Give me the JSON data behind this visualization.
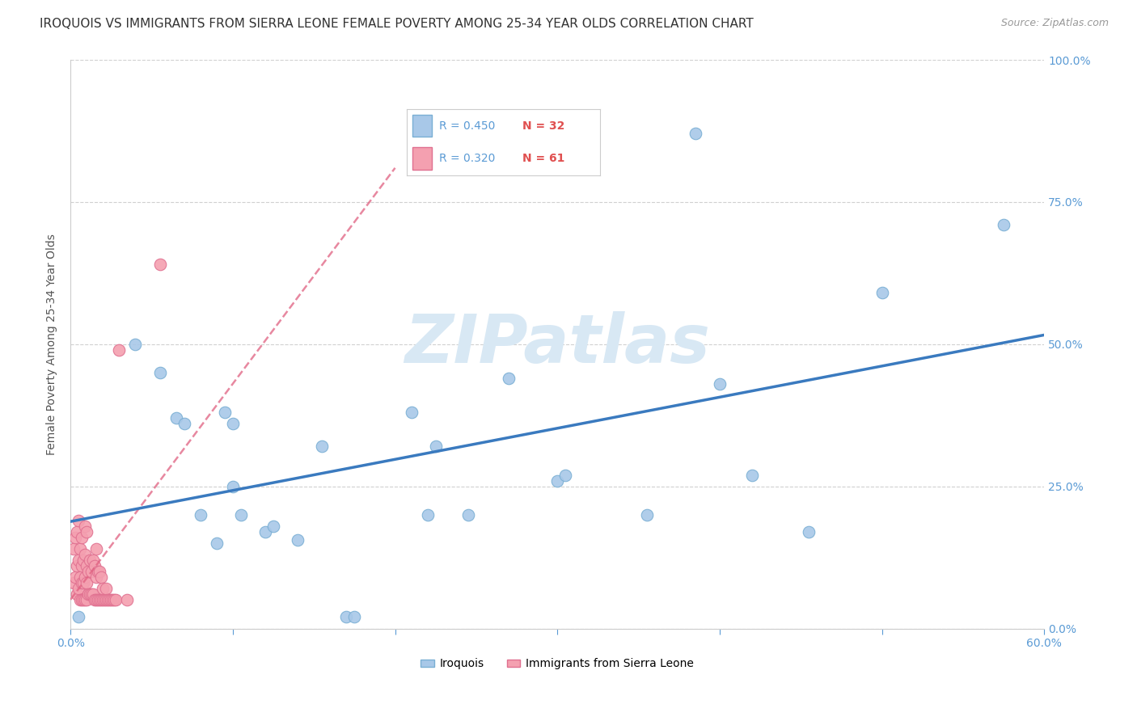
{
  "title": "IROQUOIS VS IMMIGRANTS FROM SIERRA LEONE FEMALE POVERTY AMONG 25-34 YEAR OLDS CORRELATION CHART",
  "source": "Source: ZipAtlas.com",
  "ylabel": "Female Poverty Among 25-34 Year Olds",
  "xlim": [
    0.0,
    0.6
  ],
  "ylim": [
    0.0,
    1.0
  ],
  "xticks": [
    0.0,
    0.1,
    0.2,
    0.3,
    0.4,
    0.5,
    0.6
  ],
  "xtick_labels": [
    "0.0%",
    "",
    "",
    "",
    "",
    "",
    "60.0%"
  ],
  "yticks": [
    0.0,
    0.25,
    0.5,
    0.75,
    1.0
  ],
  "right_ytick_labels": [
    "0.0%",
    "25.0%",
    "50.0%",
    "75.0%",
    "100.0%"
  ],
  "iroquois_color": "#a8c8e8",
  "iroquois_edge": "#7aafd4",
  "sierra_leone_color": "#f4a0b0",
  "sierra_leone_edge": "#e07090",
  "trend_iroquois_color": "#3a7abf",
  "trend_sierra_leone_color": "#e06080",
  "watermark_color": "#d8e8f4",
  "legend_R_color": "#5b9bd5",
  "legend_N_color": "#e05050",
  "iroquois_x": [
    0.005,
    0.04,
    0.055,
    0.065,
    0.07,
    0.08,
    0.09,
    0.095,
    0.1,
    0.1,
    0.105,
    0.12,
    0.125,
    0.14,
    0.155,
    0.17,
    0.175,
    0.21,
    0.22,
    0.225,
    0.245,
    0.27,
    0.3,
    0.305,
    0.355,
    0.385,
    0.4,
    0.42,
    0.455,
    0.5,
    0.575
  ],
  "iroquois_y": [
    0.02,
    0.5,
    0.45,
    0.37,
    0.36,
    0.2,
    0.15,
    0.38,
    0.36,
    0.25,
    0.2,
    0.17,
    0.18,
    0.155,
    0.32,
    0.02,
    0.02,
    0.38,
    0.2,
    0.32,
    0.2,
    0.44,
    0.26,
    0.27,
    0.2,
    0.87,
    0.43,
    0.27,
    0.17,
    0.59,
    0.71
  ],
  "sierra_leone_x": [
    0.002,
    0.002,
    0.003,
    0.003,
    0.004,
    0.004,
    0.004,
    0.005,
    0.005,
    0.005,
    0.006,
    0.006,
    0.006,
    0.007,
    0.007,
    0.007,
    0.007,
    0.008,
    0.008,
    0.008,
    0.009,
    0.009,
    0.009,
    0.009,
    0.01,
    0.01,
    0.01,
    0.01,
    0.011,
    0.011,
    0.012,
    0.012,
    0.013,
    0.013,
    0.014,
    0.014,
    0.015,
    0.015,
    0.016,
    0.016,
    0.016,
    0.017,
    0.017,
    0.018,
    0.018,
    0.019,
    0.019,
    0.02,
    0.02,
    0.021,
    0.022,
    0.022,
    0.023,
    0.024,
    0.025,
    0.026,
    0.027,
    0.028,
    0.03,
    0.035,
    0.055
  ],
  "sierra_leone_y": [
    0.08,
    0.14,
    0.09,
    0.16,
    0.06,
    0.11,
    0.17,
    0.07,
    0.12,
    0.19,
    0.05,
    0.09,
    0.14,
    0.05,
    0.08,
    0.11,
    0.16,
    0.05,
    0.08,
    0.12,
    0.05,
    0.09,
    0.13,
    0.18,
    0.05,
    0.08,
    0.11,
    0.17,
    0.06,
    0.1,
    0.06,
    0.12,
    0.06,
    0.1,
    0.06,
    0.12,
    0.05,
    0.11,
    0.05,
    0.09,
    0.14,
    0.05,
    0.1,
    0.05,
    0.1,
    0.05,
    0.09,
    0.05,
    0.07,
    0.05,
    0.05,
    0.07,
    0.05,
    0.05,
    0.05,
    0.05,
    0.05,
    0.05,
    0.49,
    0.05,
    0.64
  ],
  "background_color": "#ffffff",
  "grid_color": "#d0d0d0",
  "axis_color": "#cccccc",
  "title_fontsize": 11,
  "label_fontsize": 10,
  "tick_fontsize": 10,
  "tick_color": "#5b9bd5"
}
